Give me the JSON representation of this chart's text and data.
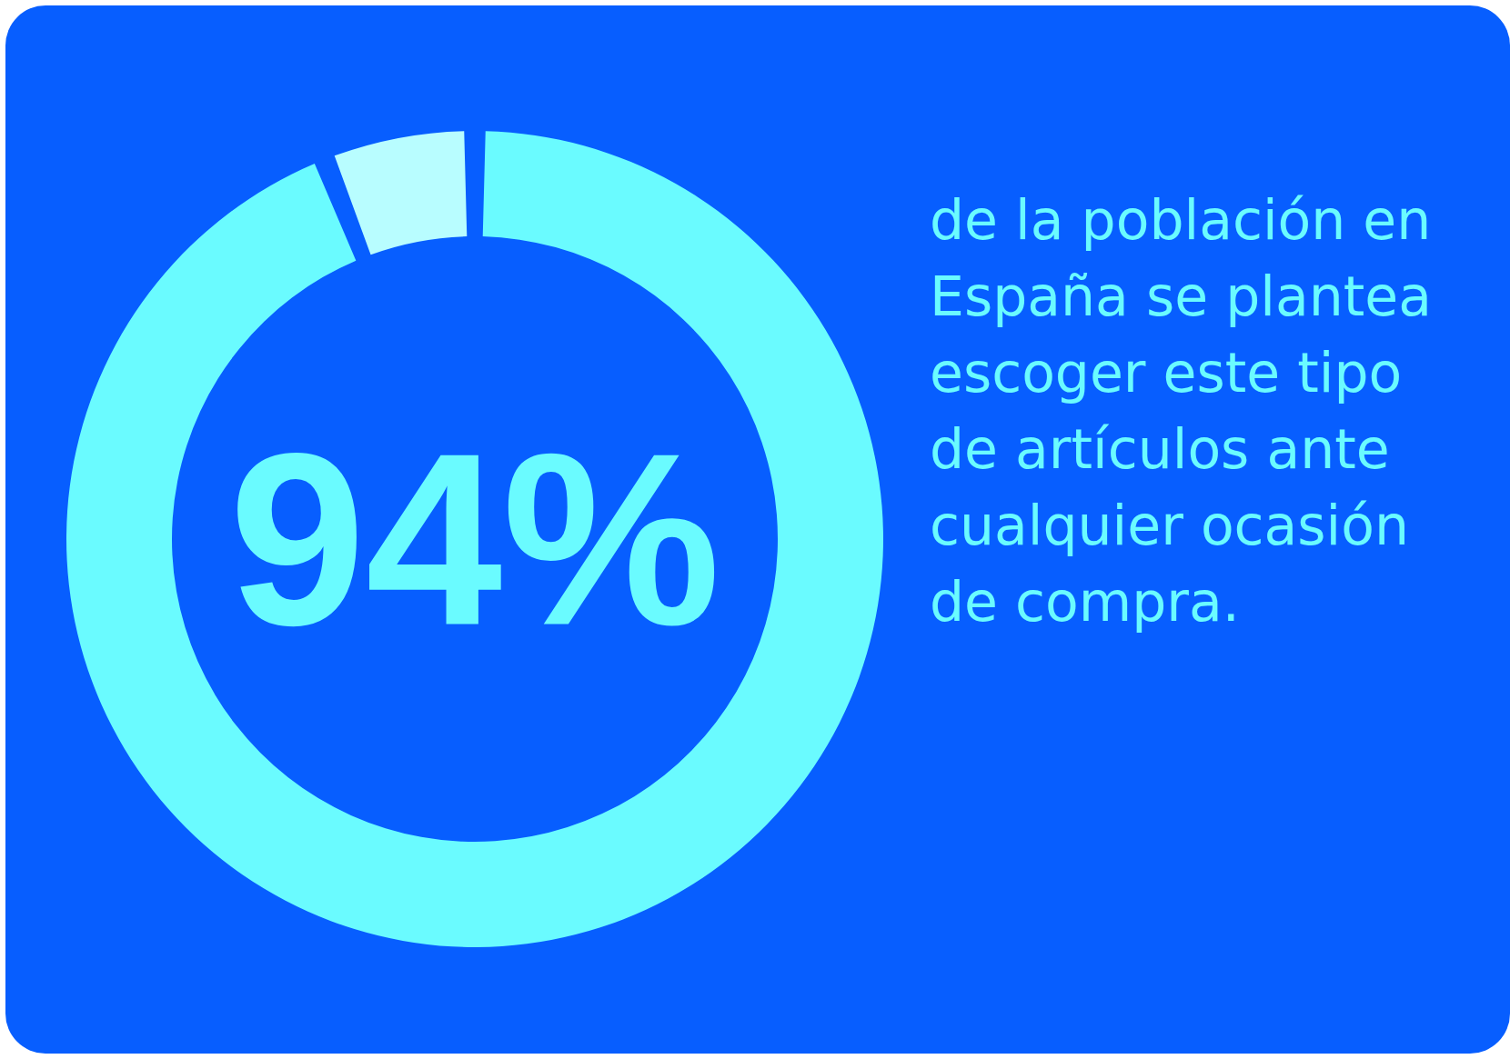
{
  "chart_data": {
    "type": "donut",
    "categories": [
      null,
      null
    ],
    "values": [
      94,
      6
    ],
    "colors": [
      "#6afbff",
      "#b8fdff"
    ],
    "value_labels": [
      "94%",
      null
    ],
    "annotations": [
      "de la población en España se plantea escoger este tipo de artículos ante cualquier ocasión de compra."
    ]
  }
}
